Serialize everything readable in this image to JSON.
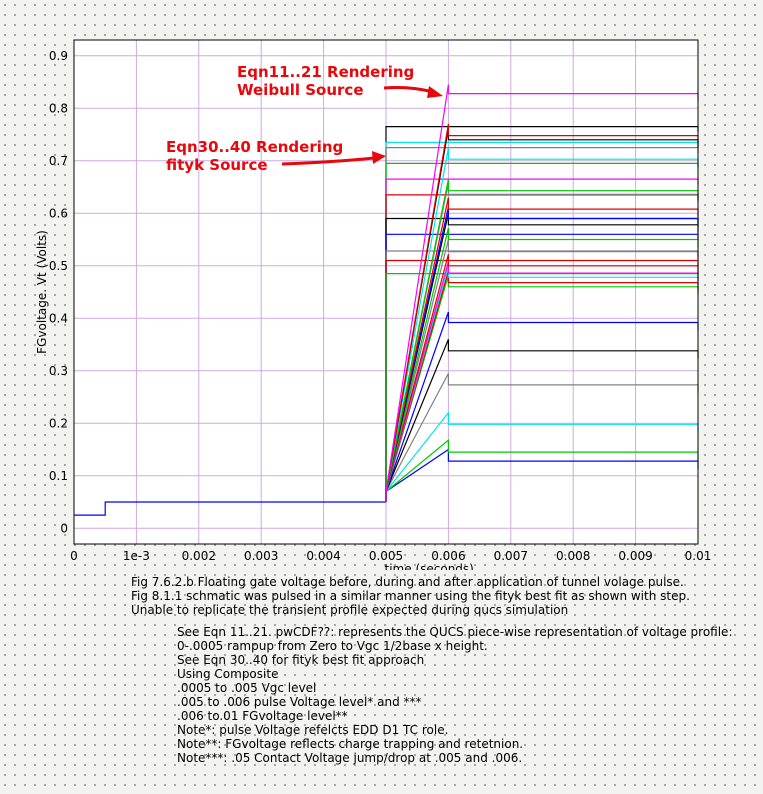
{
  "chart_data": {
    "type": "line",
    "title": "",
    "xlabel": "time (seconds)",
    "ylabel": "FGvoltage. Vt (Volts)",
    "xlim": [
      0,
      0.01
    ],
    "ylim": [
      -0.03,
      0.93
    ],
    "grid": true,
    "x_ticks": [
      {
        "v": 0,
        "label": "0"
      },
      {
        "v": 0.001,
        "label": "1e-3"
      },
      {
        "v": 0.002,
        "label": "0.002"
      },
      {
        "v": 0.003,
        "label": "0.003"
      },
      {
        "v": 0.004,
        "label": "0.004"
      },
      {
        "v": 0.005,
        "label": "0.005"
      },
      {
        "v": 0.006,
        "label": "0.006"
      },
      {
        "v": 0.007,
        "label": "0.007"
      },
      {
        "v": 0.008,
        "label": "0.008"
      },
      {
        "v": 0.009,
        "label": "0.009"
      },
      {
        "v": 0.01,
        "label": "0.01"
      }
    ],
    "y_ticks": [
      {
        "v": 0,
        "label": "0"
      },
      {
        "v": 0.1,
        "label": "0.1"
      },
      {
        "v": 0.2,
        "label": "0.2"
      },
      {
        "v": 0.3,
        "label": "0.3"
      },
      {
        "v": 0.4,
        "label": "0.4"
      },
      {
        "v": 0.5,
        "label": "0.5"
      },
      {
        "v": 0.6,
        "label": "0.6"
      },
      {
        "v": 0.7,
        "label": "0.7"
      },
      {
        "v": 0.8,
        "label": "0.8"
      },
      {
        "v": 0.9,
        "label": "0.9"
      }
    ],
    "base_curve": {
      "color": "#0000ff",
      "x": [
        0,
        0.0005,
        0.0005,
        0.005
      ],
      "y": [
        0.025,
        0.025,
        0.05,
        0.05
      ]
    },
    "weibull_series": [
      {
        "color": "#0000ff",
        "peak": 0.15,
        "level": 0.128
      },
      {
        "color": "#00c800",
        "peak": 0.168,
        "level": 0.145
      },
      {
        "color": "#00e5e5",
        "peak": 0.22,
        "level": 0.198
      },
      {
        "color": "#808080",
        "peak": 0.295,
        "level": 0.273
      },
      {
        "color": "#000000",
        "peak": 0.36,
        "level": 0.338
      },
      {
        "color": "#0000ff",
        "peak": 0.412,
        "level": 0.392
      },
      {
        "color": "#00c800",
        "peak": 0.482,
        "level": 0.46
      },
      {
        "color": "#e00000",
        "peak": 0.49,
        "level": 0.468
      },
      {
        "color": "#00e5e5",
        "peak": 0.5,
        "level": 0.478
      },
      {
        "color": "#ff00ff",
        "peak": 0.508,
        "level": 0.486
      },
      {
        "color": "#e00000",
        "peak": 0.522,
        "level": 0.5
      },
      {
        "color": "#808080",
        "peak": 0.55,
        "level": 0.527
      },
      {
        "color": "#00c800",
        "peak": 0.572,
        "level": 0.55
      },
      {
        "color": "#000000",
        "peak": 0.6,
        "level": 0.578
      },
      {
        "color": "#0000ff",
        "peak": 0.612,
        "level": 0.59
      },
      {
        "color": "#e00000",
        "peak": 0.63,
        "level": 0.608
      },
      {
        "color": "#808080",
        "peak": 0.658,
        "level": 0.636
      },
      {
        "color": "#00c800",
        "peak": 0.665,
        "level": 0.643
      },
      {
        "color": "#00e5e5",
        "peak": 0.725,
        "level": 0.703
      },
      {
        "color": "#000000",
        "peak": 0.762,
        "level": 0.74
      },
      {
        "color": "#e00000",
        "peak": 0.77,
        "level": 0.748
      },
      {
        "color": "#ff00ff",
        "peak": 0.845,
        "level": 0.828
      }
    ],
    "fityk_series": [
      {
        "color": "#000000",
        "peak": 0.765,
        "level": 0.765
      },
      {
        "color": "#00e5e5",
        "peak": 0.735,
        "level": 0.735
      },
      {
        "color": "#808080",
        "peak": 0.725,
        "level": 0.725
      },
      {
        "color": "#00c800",
        "peak": 0.695,
        "level": 0.695
      },
      {
        "color": "#ff00ff",
        "peak": 0.665,
        "level": 0.665
      },
      {
        "color": "#e00000",
        "peak": 0.635,
        "level": 0.635
      },
      {
        "color": "#000000",
        "peak": 0.59,
        "level": 0.59
      },
      {
        "color": "#0000ff",
        "peak": 0.56,
        "level": 0.56
      },
      {
        "color": "#808080",
        "peak": 0.528,
        "level": 0.528
      },
      {
        "color": "#e00000",
        "peak": 0.51,
        "level": 0.51
      },
      {
        "color": "#00c800",
        "peak": 0.485,
        "level": 0.485
      }
    ],
    "annotations": [
      {
        "line1": "Eqn11..21 Rendering",
        "line2": "Weibull Source"
      },
      {
        "line1": "Eqn30..40 Rendering",
        "line2": "fityk Source"
      }
    ]
  },
  "caption": [
    "Fig 7.6.2.b Floating gate voltage before, during and after application of tunnel volage pulse.",
    "Fig 8.1.1 schmatic was pulsed in a similar manner using the fityk best fit as shown with step.",
    "Unable to replicate the transient profile expected during qucs simulation"
  ],
  "notes": [
    "See Eqn 11..21.  pwCDF??: represents the QUCS piece-wise representation of voltage profile:",
    "0-.0005 rampup from Zero to Vgc 1/2base x height.",
    "See Eqn 30..40 for fityk best fit approach",
    "Using Composite",
    ".0005 to .005 Vgc level",
    ".005 to .006 pulse Voltage level* and ***",
    ".006 to.01 FGvoltage level**",
    "Note*: pulse Voltage refelcts EDD D1 TC role.",
    "Note**: FGvoltage reflects charge trapping and retetnion.",
    "Note***: .05 Contact Voltage jump/drop at .005 and .006."
  ]
}
